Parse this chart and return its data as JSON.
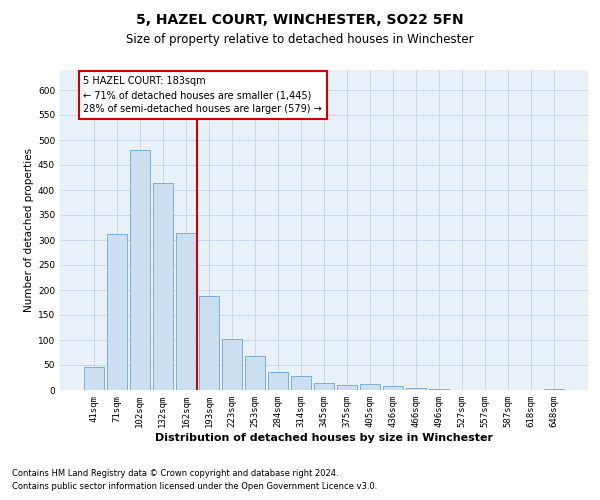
{
  "title1": "5, HAZEL COURT, WINCHESTER, SO22 5FN",
  "title2": "Size of property relative to detached houses in Winchester",
  "xlabel": "Distribution of detached houses by size in Winchester",
  "ylabel": "Number of detached properties",
  "annotation_title": "5 HAZEL COURT: 183sqm",
  "annotation_line1": "← 71% of detached houses are smaller (1,445)",
  "annotation_line2": "28% of semi-detached houses are larger (579) →",
  "footnote1": "Contains HM Land Registry data © Crown copyright and database right 2024.",
  "footnote2": "Contains public sector information licensed under the Open Government Licence v3.0.",
  "bar_color": "#ccdff0",
  "bar_edge_color": "#7bafd4",
  "vline_color": "#cc0000",
  "vline_x": 4.5,
  "categories": [
    "41sqm",
    "71sqm",
    "102sqm",
    "132sqm",
    "162sqm",
    "193sqm",
    "223sqm",
    "253sqm",
    "284sqm",
    "314sqm",
    "345sqm",
    "375sqm",
    "405sqm",
    "436sqm",
    "466sqm",
    "496sqm",
    "527sqm",
    "557sqm",
    "587sqm",
    "618sqm",
    "648sqm"
  ],
  "values": [
    46,
    312,
    480,
    414,
    315,
    188,
    103,
    69,
    37,
    29,
    14,
    11,
    13,
    9,
    5,
    3,
    1,
    0,
    1,
    0,
    3
  ],
  "ylim": [
    0,
    640
  ],
  "yticks": [
    0,
    50,
    100,
    150,
    200,
    250,
    300,
    350,
    400,
    450,
    500,
    550,
    600
  ],
  "grid_color": "#c8d8e8",
  "background_color": "#e8f0f8",
  "box_color": "#cc0000",
  "title1_fontsize": 10,
  "title2_fontsize": 8.5,
  "xlabel_fontsize": 8,
  "ylabel_fontsize": 7.5,
  "tick_fontsize": 6.5,
  "ann_fontsize": 7,
  "footnote_fontsize": 6
}
